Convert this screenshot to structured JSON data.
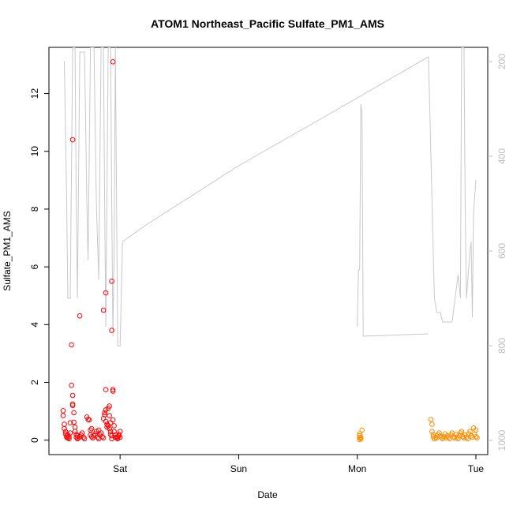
{
  "chart_data": {
    "type": "scatter",
    "title": "ATOM1 Northeast_Pacific Sulfate_PM1_AMS",
    "xlabel": "Date",
    "ylabel": "Sulfate_PM1_AMS",
    "x_ticks": [
      {
        "value": 1.0,
        "label": "Sat"
      },
      {
        "value": 2.0,
        "label": "Sun"
      },
      {
        "value": 3.0,
        "label": "Mon"
      },
      {
        "value": 4.0,
        "label": "Tue"
      }
    ],
    "xlim": [
      0.4,
      4.1
    ],
    "y_ticks": [
      0,
      2,
      4,
      6,
      8,
      10,
      12
    ],
    "ylim": [
      -0.5,
      13.6
    ],
    "y2_ticks": [
      200,
      400,
      600,
      800,
      1000
    ],
    "y2lim": [
      1030,
      170
    ],
    "y2_reversed": true,
    "grid": false,
    "colors": {
      "series_red": "#ff0000",
      "series_orange": "#ff8c00",
      "pressure_line": "#c8c8c8",
      "axis": "#000000",
      "right_axis": "#bdbdbd"
    },
    "series": [
      {
        "color": "#ff0000",
        "marker": "open-circle",
        "points": [
          [
            0.52,
            1.02
          ],
          [
            0.52,
            0.85
          ],
          [
            0.53,
            0.55
          ],
          [
            0.53,
            0.4
          ],
          [
            0.54,
            0.3
          ],
          [
            0.54,
            0.22
          ],
          [
            0.55,
            0.15
          ],
          [
            0.55,
            0.1
          ],
          [
            0.56,
            0.18
          ],
          [
            0.56,
            0.08
          ],
          [
            0.57,
            0.12
          ],
          [
            0.57,
            0.05
          ],
          [
            0.58,
            0.25
          ],
          [
            0.58,
            0.6
          ],
          [
            0.59,
            3.3
          ],
          [
            0.59,
            1.9
          ],
          [
            0.6,
            1.55
          ],
          [
            0.6,
            1.25
          ],
          [
            0.6,
            1.2
          ],
          [
            0.61,
            0.95
          ],
          [
            0.61,
            0.62
          ],
          [
            0.62,
            0.45
          ],
          [
            0.62,
            0.3
          ],
          [
            0.63,
            0.2
          ],
          [
            0.63,
            0.1
          ],
          [
            0.64,
            0.05
          ],
          [
            0.64,
            0.15
          ],
          [
            0.65,
            0.08
          ],
          [
            0.66,
            0.12
          ],
          [
            0.67,
            0.18
          ],
          [
            0.68,
            0.25
          ],
          [
            0.69,
            0.1
          ],
          [
            0.7,
            0.05
          ],
          [
            0.72,
            0.8
          ],
          [
            0.73,
            0.72
          ],
          [
            0.74,
            0.7
          ],
          [
            0.75,
            0.35
          ],
          [
            0.75,
            0.18
          ],
          [
            0.76,
            0.12
          ],
          [
            0.77,
            0.08
          ],
          [
            0.78,
            0.15
          ],
          [
            0.79,
            0.22
          ],
          [
            0.8,
            0.3
          ],
          [
            0.81,
            0.1
          ],
          [
            0.82,
            0.05
          ],
          [
            0.83,
            0.18
          ],
          [
            0.84,
            0.25
          ],
          [
            0.85,
            0.12
          ],
          [
            0.86,
            0.08
          ],
          [
            0.86,
            0.75
          ],
          [
            0.87,
            0.88
          ],
          [
            0.87,
            0.95
          ],
          [
            0.88,
            1.05
          ],
          [
            0.88,
            0.65
          ],
          [
            0.89,
            0.55
          ],
          [
            0.89,
            0.45
          ],
          [
            0.9,
            0.5
          ],
          [
            0.9,
            1.1
          ],
          [
            0.91,
            1.18
          ],
          [
            0.91,
            0.85
          ],
          [
            0.91,
            0.4
          ],
          [
            0.92,
            0.3
          ],
          [
            0.92,
            0.6
          ],
          [
            0.92,
            0.2
          ],
          [
            0.93,
            0.15
          ],
          [
            0.93,
            0.05
          ],
          [
            0.93,
            3.8
          ],
          [
            0.93,
            5.5
          ],
          [
            0.94,
            1.7
          ],
          [
            0.94,
            1.75
          ],
          [
            0.94,
            0.7
          ],
          [
            0.95,
            0.5
          ],
          [
            0.95,
            0.3
          ],
          [
            0.96,
            0.18
          ],
          [
            0.96,
            0.1
          ],
          [
            0.97,
            0.08
          ],
          [
            0.98,
            0.12
          ],
          [
            0.98,
            0.05
          ],
          [
            0.99,
            0.15
          ],
          [
            0.99,
            0.2
          ],
          [
            1.0,
            0.3
          ],
          [
            1.0,
            0.1
          ],
          [
            0.6,
            10.4
          ],
          [
            0.66,
            4.3
          ],
          [
            0.86,
            4.5
          ],
          [
            0.88,
            5.1
          ],
          [
            0.94,
            13.1
          ],
          [
            0.88,
            1.75
          ],
          [
            0.82,
            0.35
          ],
          [
            0.76,
            0.4
          ]
        ]
      },
      {
        "color": "#ff8c00",
        "marker": "open-circle",
        "points": [
          [
            3.02,
            0.02
          ],
          [
            3.02,
            0.08
          ],
          [
            3.02,
            0.15
          ],
          [
            3.02,
            0.22
          ],
          [
            3.03,
            0.05
          ],
          [
            3.03,
            0.1
          ],
          [
            3.04,
            0.35
          ],
          [
            3.62,
            0.72
          ],
          [
            3.63,
            0.55
          ],
          [
            3.63,
            0.3
          ],
          [
            3.64,
            0.2
          ],
          [
            3.64,
            0.12
          ],
          [
            3.65,
            0.05
          ],
          [
            3.66,
            0.1
          ],
          [
            3.67,
            0.08
          ],
          [
            3.68,
            0.18
          ],
          [
            3.69,
            0.25
          ],
          [
            3.7,
            0.15
          ],
          [
            3.71,
            0.1
          ],
          [
            3.72,
            0.05
          ],
          [
            3.73,
            0.12
          ],
          [
            3.74,
            0.22
          ],
          [
            3.75,
            0.08
          ],
          [
            3.76,
            0.15
          ],
          [
            3.77,
            0.1
          ],
          [
            3.78,
            0.05
          ],
          [
            3.79,
            0.18
          ],
          [
            3.8,
            0.25
          ],
          [
            3.81,
            0.12
          ],
          [
            3.82,
            0.08
          ],
          [
            3.83,
            0.2
          ],
          [
            3.84,
            0.1
          ],
          [
            3.85,
            0.05
          ],
          [
            3.86,
            0.15
          ],
          [
            3.87,
            0.25
          ],
          [
            3.88,
            0.3
          ],
          [
            3.89,
            0.12
          ],
          [
            3.9,
            0.08
          ],
          [
            3.91,
            0.18
          ],
          [
            3.92,
            0.1
          ],
          [
            3.93,
            0.05
          ],
          [
            3.94,
            0.22
          ],
          [
            3.95,
            0.3
          ],
          [
            3.96,
            0.15
          ],
          [
            3.97,
            0.1
          ],
          [
            3.98,
            0.42
          ],
          [
            3.99,
            0.2
          ],
          [
            4.0,
            0.35
          ],
          [
            4.0,
            0.12
          ],
          [
            4.01,
            0.08
          ]
        ]
      }
    ],
    "secondary_line": {
      "color": "#c8c8c8",
      "points": [
        [
          0.53,
          200
        ],
        [
          0.55,
          500
        ],
        [
          0.56,
          700
        ],
        [
          0.58,
          700
        ],
        [
          0.6,
          170
        ],
        [
          0.62,
          170
        ],
        [
          0.63,
          500
        ],
        [
          0.64,
          700
        ],
        [
          0.66,
          180
        ],
        [
          0.7,
          180
        ],
        [
          0.72,
          500
        ],
        [
          0.73,
          620
        ],
        [
          0.75,
          170
        ],
        [
          0.78,
          170
        ],
        [
          0.8,
          500
        ],
        [
          0.82,
          660
        ],
        [
          0.84,
          170
        ],
        [
          0.86,
          170
        ],
        [
          0.87,
          500
        ],
        [
          0.88,
          760
        ],
        [
          0.9,
          170
        ],
        [
          0.92,
          170
        ],
        [
          0.93,
          500
        ],
        [
          0.94,
          780
        ],
        [
          0.95,
          600
        ],
        [
          0.96,
          170
        ],
        [
          0.97,
          500
        ],
        [
          0.98,
          800
        ],
        [
          1.0,
          800
        ],
        [
          1.02,
          580
        ],
        [
          1.25,
          540
        ],
        [
          2.0,
          420
        ],
        [
          2.7,
          320
        ],
        [
          3.6,
          190
        ],
        [
          3.65,
          700
        ],
        [
          3.67,
          730
        ],
        [
          3.7,
          730
        ],
        [
          3.72,
          750
        ],
        [
          3.8,
          750
        ],
        [
          3.85,
          650
        ],
        [
          3.87,
          700
        ],
        [
          3.88,
          170
        ],
        [
          3.9,
          170
        ],
        [
          3.91,
          500
        ],
        [
          3.92,
          700
        ],
        [
          3.95,
          600
        ],
        [
          3.96,
          580
        ],
        [
          3.97,
          740
        ],
        [
          3.98,
          520
        ],
        [
          4.0,
          450
        ]
      ],
      "tail_from_monday": [
        [
          3.0,
          760
        ],
        [
          3.01,
          640
        ],
        [
          3.02,
          640
        ],
        [
          3.03,
          290
        ],
        [
          3.04,
          310
        ],
        [
          3.05,
          780
        ],
        [
          3.6,
          775
        ]
      ]
    }
  }
}
